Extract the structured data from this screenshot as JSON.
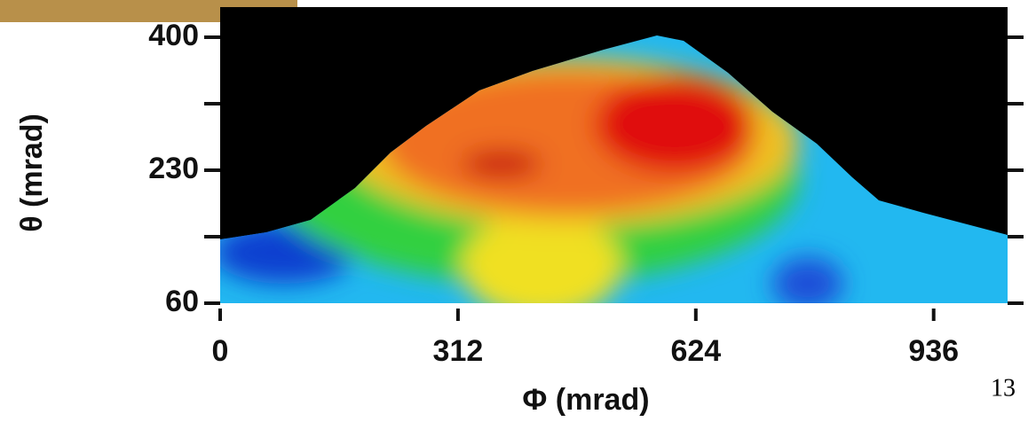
{
  "chart_data": {
    "type": "contour",
    "xlabel": "Φ (mrad)",
    "ylabel": "θ (mrad)",
    "xlim": [
      0,
      1033
    ],
    "xticks": [
      0,
      312,
      624,
      936
    ],
    "ylim": [
      60,
      400
    ],
    "yticks": [
      60,
      230,
      400
    ],
    "minor_yticks": [
      145,
      315
    ],
    "page_number": "13"
  }
}
